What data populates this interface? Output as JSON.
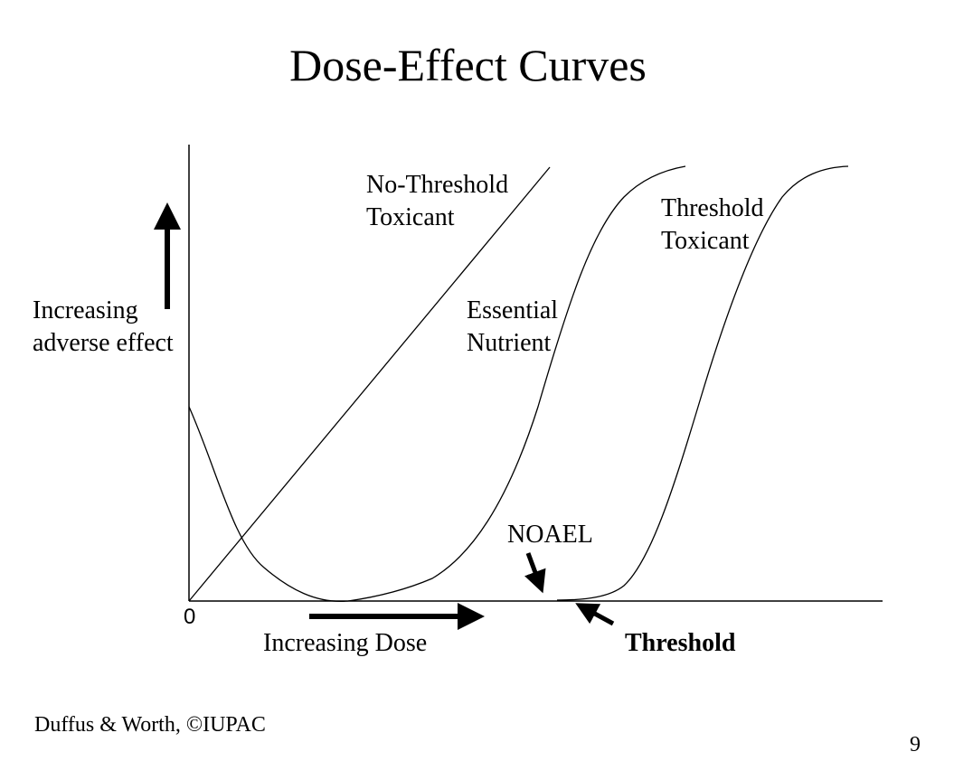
{
  "title": "Dose-Effect Curves",
  "axes": {
    "y_label_line1": "Increasing",
    "y_label_line2": "adverse effect",
    "x_label": "Increasing Dose",
    "origin_label": "0"
  },
  "curves": {
    "no_threshold": {
      "line1": "No-Threshold",
      "line2": "Toxicant"
    },
    "essential": {
      "line1": "Essential",
      "line2": "Nutrient"
    },
    "threshold": {
      "line1": "Threshold",
      "line2": "Toxicant"
    }
  },
  "markers": {
    "noael": "NOAEL",
    "threshold": "Threshold"
  },
  "footer": {
    "credit": "Duffus & Worth, ©IUPAC",
    "page_number": "9"
  }
}
